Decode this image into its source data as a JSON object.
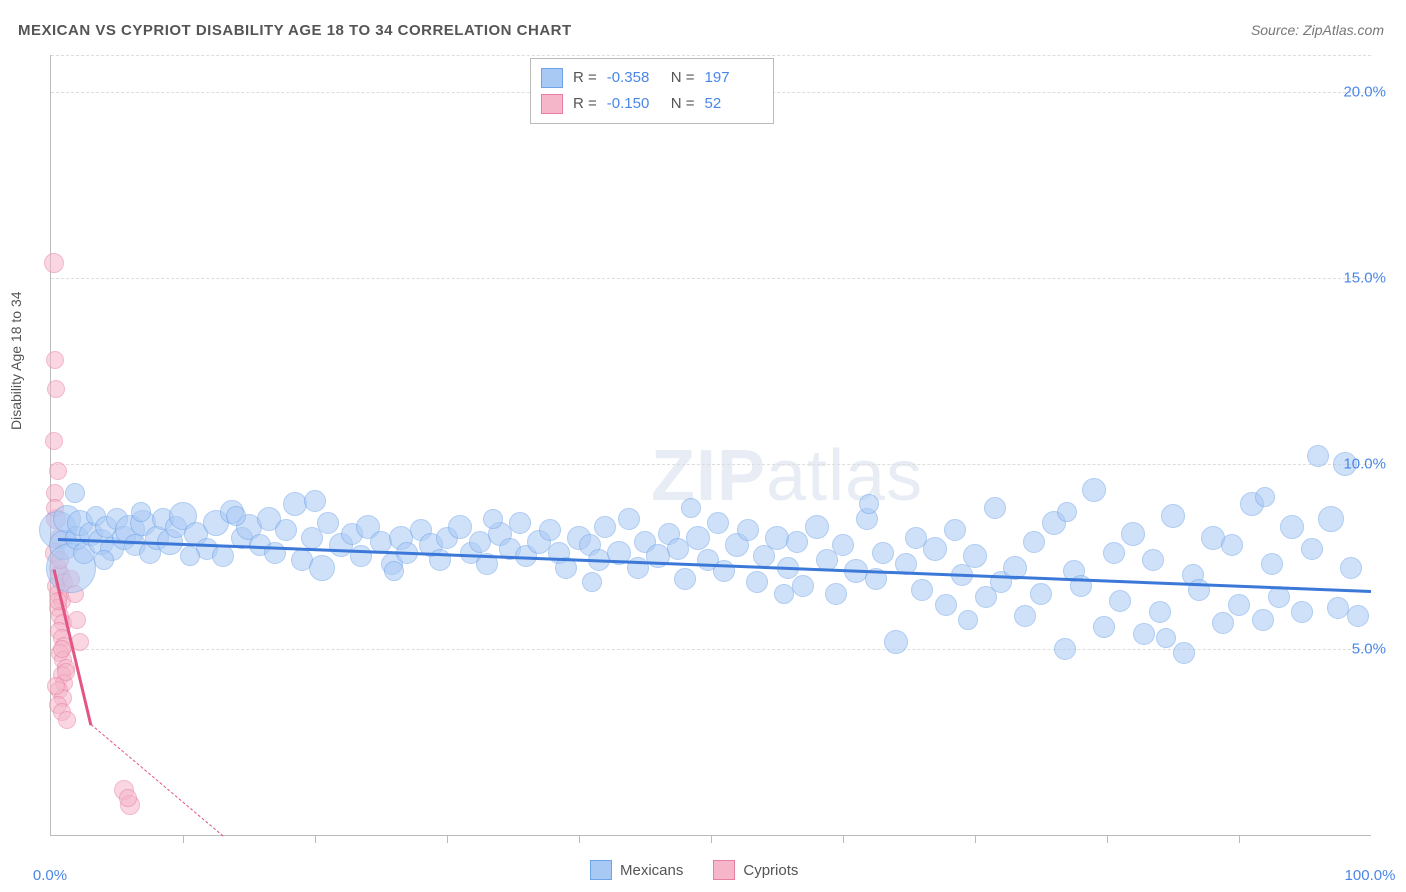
{
  "title": "MEXICAN VS CYPRIOT DISABILITY AGE 18 TO 34 CORRELATION CHART",
  "source": "Source: ZipAtlas.com",
  "y_axis_label": "Disability Age 18 to 34",
  "watermark": {
    "bold": "ZIP",
    "rest": "atlas"
  },
  "chart": {
    "type": "scatter",
    "xlim": [
      0,
      100
    ],
    "ylim": [
      0,
      21
    ],
    "y_ticks": [
      5.0,
      10.0,
      15.0,
      20.0
    ],
    "x_ticks": [
      0.0,
      100.0
    ],
    "x_minor_ticks": [
      10,
      20,
      30,
      40,
      50,
      60,
      70,
      80,
      90
    ],
    "y_tick_fmt": "%",
    "grid_color": "#dddddd",
    "border_color": "#bbbbbb",
    "background_color": "#ffffff",
    "text_color": "#555555",
    "value_color": "#4a86e8"
  },
  "series": {
    "mexicans": {
      "label": "Mexicans",
      "label_r": "R =",
      "r": "-0.358",
      "label_n": "N =",
      "n": "197",
      "fill": "#a9c9f5",
      "stroke": "#6fa3e8",
      "fill_opacity": 0.55,
      "trend": {
        "x1": 0.5,
        "y1": 8.0,
        "x2": 100,
        "y2": 6.6,
        "color": "#3b78d8",
        "width": 3
      },
      "points": [
        {
          "x": 0.5,
          "y": 8.2,
          "r": 18
        },
        {
          "x": 1,
          "y": 7.8,
          "r": 14
        },
        {
          "x": 1.2,
          "y": 8.5,
          "r": 13
        },
        {
          "x": 1.5,
          "y": 7.2,
          "r": 24
        },
        {
          "x": 2,
          "y": 8.0,
          "r": 11
        },
        {
          "x": 2.2,
          "y": 8.4,
          "r": 12
        },
        {
          "x": 2.5,
          "y": 7.6,
          "r": 10
        },
        {
          "x": 3,
          "y": 8.1,
          "r": 11
        },
        {
          "x": 3.4,
          "y": 8.6,
          "r": 9
        },
        {
          "x": 3.8,
          "y": 7.9,
          "r": 12
        },
        {
          "x": 4.2,
          "y": 8.3,
          "r": 10
        },
        {
          "x": 4.6,
          "y": 7.7,
          "r": 11
        },
        {
          "x": 5,
          "y": 8.5,
          "r": 10
        },
        {
          "x": 5.5,
          "y": 8.0,
          "r": 11
        },
        {
          "x": 6,
          "y": 8.2,
          "r": 14
        },
        {
          "x": 6.4,
          "y": 7.8,
          "r": 10
        },
        {
          "x": 7,
          "y": 8.4,
          "r": 12
        },
        {
          "x": 7.5,
          "y": 7.6,
          "r": 10
        },
        {
          "x": 8,
          "y": 8.0,
          "r": 11
        },
        {
          "x": 8.5,
          "y": 8.5,
          "r": 10
        },
        {
          "x": 9,
          "y": 7.9,
          "r": 12
        },
        {
          "x": 9.5,
          "y": 8.3,
          "r": 10
        },
        {
          "x": 10,
          "y": 8.6,
          "r": 13
        },
        {
          "x": 11,
          "y": 8.1,
          "r": 11
        },
        {
          "x": 11.8,
          "y": 7.7,
          "r": 10
        },
        {
          "x": 12.5,
          "y": 8.4,
          "r": 12
        },
        {
          "x": 13,
          "y": 7.5,
          "r": 10
        },
        {
          "x": 13.7,
          "y": 8.7,
          "r": 11
        },
        {
          "x": 14.5,
          "y": 8.0,
          "r": 10
        },
        {
          "x": 15,
          "y": 8.3,
          "r": 12
        },
        {
          "x": 15.8,
          "y": 7.8,
          "r": 10
        },
        {
          "x": 16.5,
          "y": 8.5,
          "r": 11
        },
        {
          "x": 17,
          "y": 7.6,
          "r": 10
        },
        {
          "x": 17.8,
          "y": 8.2,
          "r": 10
        },
        {
          "x": 18.5,
          "y": 8.9,
          "r": 11
        },
        {
          "x": 19,
          "y": 7.4,
          "r": 10
        },
        {
          "x": 19.8,
          "y": 8.0,
          "r": 10
        },
        {
          "x": 20.5,
          "y": 7.2,
          "r": 12
        },
        {
          "x": 21,
          "y": 8.4,
          "r": 10
        },
        {
          "x": 22,
          "y": 7.8,
          "r": 11
        },
        {
          "x": 22.8,
          "y": 8.1,
          "r": 10
        },
        {
          "x": 23.5,
          "y": 7.5,
          "r": 10
        },
        {
          "x": 24,
          "y": 8.3,
          "r": 11
        },
        {
          "x": 25,
          "y": 7.9,
          "r": 10
        },
        {
          "x": 25.8,
          "y": 7.3,
          "r": 10
        },
        {
          "x": 26.5,
          "y": 8.0,
          "r": 11
        },
        {
          "x": 27,
          "y": 7.6,
          "r": 10
        },
        {
          "x": 28,
          "y": 8.2,
          "r": 10
        },
        {
          "x": 28.8,
          "y": 7.8,
          "r": 11
        },
        {
          "x": 29.5,
          "y": 7.4,
          "r": 10
        },
        {
          "x": 30,
          "y": 8.0,
          "r": 10
        },
        {
          "x": 31,
          "y": 8.3,
          "r": 11
        },
        {
          "x": 31.8,
          "y": 7.6,
          "r": 10
        },
        {
          "x": 32.5,
          "y": 7.9,
          "r": 10
        },
        {
          "x": 33,
          "y": 7.3,
          "r": 10
        },
        {
          "x": 34,
          "y": 8.1,
          "r": 11
        },
        {
          "x": 34.8,
          "y": 7.7,
          "r": 10
        },
        {
          "x": 35.5,
          "y": 8.4,
          "r": 10
        },
        {
          "x": 36,
          "y": 7.5,
          "r": 10
        },
        {
          "x": 37,
          "y": 7.9,
          "r": 11
        },
        {
          "x": 37.8,
          "y": 8.2,
          "r": 10
        },
        {
          "x": 38.5,
          "y": 7.6,
          "r": 10
        },
        {
          "x": 39,
          "y": 7.2,
          "r": 10
        },
        {
          "x": 40,
          "y": 8.0,
          "r": 11
        },
        {
          "x": 40.8,
          "y": 7.8,
          "r": 10
        },
        {
          "x": 41.5,
          "y": 7.4,
          "r": 10
        },
        {
          "x": 42,
          "y": 8.3,
          "r": 10
        },
        {
          "x": 43,
          "y": 7.6,
          "r": 11
        },
        {
          "x": 43.8,
          "y": 8.5,
          "r": 10
        },
        {
          "x": 44.5,
          "y": 7.2,
          "r": 10
        },
        {
          "x": 45,
          "y": 7.9,
          "r": 10
        },
        {
          "x": 46,
          "y": 7.5,
          "r": 11
        },
        {
          "x": 46.8,
          "y": 8.1,
          "r": 10
        },
        {
          "x": 47.5,
          "y": 7.7,
          "r": 10
        },
        {
          "x": 48,
          "y": 6.9,
          "r": 10
        },
        {
          "x": 49,
          "y": 8.0,
          "r": 11
        },
        {
          "x": 49.8,
          "y": 7.4,
          "r": 10
        },
        {
          "x": 50.5,
          "y": 8.4,
          "r": 10
        },
        {
          "x": 51,
          "y": 7.1,
          "r": 10
        },
        {
          "x": 52,
          "y": 7.8,
          "r": 11
        },
        {
          "x": 52.8,
          "y": 8.2,
          "r": 10
        },
        {
          "x": 53.5,
          "y": 6.8,
          "r": 10
        },
        {
          "x": 54,
          "y": 7.5,
          "r": 10
        },
        {
          "x": 55,
          "y": 8.0,
          "r": 11
        },
        {
          "x": 55.8,
          "y": 7.2,
          "r": 10
        },
        {
          "x": 56.5,
          "y": 7.9,
          "r": 10
        },
        {
          "x": 57,
          "y": 6.7,
          "r": 10
        },
        {
          "x": 58,
          "y": 8.3,
          "r": 11
        },
        {
          "x": 58.8,
          "y": 7.4,
          "r": 10
        },
        {
          "x": 59.5,
          "y": 6.5,
          "r": 10
        },
        {
          "x": 60,
          "y": 7.8,
          "r": 10
        },
        {
          "x": 61,
          "y": 7.1,
          "r": 11
        },
        {
          "x": 61.8,
          "y": 8.5,
          "r": 10
        },
        {
          "x": 62.5,
          "y": 6.9,
          "r": 10
        },
        {
          "x": 63,
          "y": 7.6,
          "r": 10
        },
        {
          "x": 64,
          "y": 5.2,
          "r": 11
        },
        {
          "x": 64.8,
          "y": 7.3,
          "r": 10
        },
        {
          "x": 65.5,
          "y": 8.0,
          "r": 10
        },
        {
          "x": 66,
          "y": 6.6,
          "r": 10
        },
        {
          "x": 67,
          "y": 7.7,
          "r": 11
        },
        {
          "x": 67.8,
          "y": 6.2,
          "r": 10
        },
        {
          "x": 68.5,
          "y": 8.2,
          "r": 10
        },
        {
          "x": 69,
          "y": 7.0,
          "r": 10
        },
        {
          "x": 70,
          "y": 7.5,
          "r": 11
        },
        {
          "x": 70.8,
          "y": 6.4,
          "r": 10
        },
        {
          "x": 71.5,
          "y": 8.8,
          "r": 10
        },
        {
          "x": 72,
          "y": 6.8,
          "r": 10
        },
        {
          "x": 73,
          "y": 7.2,
          "r": 11
        },
        {
          "x": 73.8,
          "y": 5.9,
          "r": 10
        },
        {
          "x": 74.5,
          "y": 7.9,
          "r": 10
        },
        {
          "x": 75,
          "y": 6.5,
          "r": 10
        },
        {
          "x": 76,
          "y": 8.4,
          "r": 11
        },
        {
          "x": 76.8,
          "y": 5.0,
          "r": 10
        },
        {
          "x": 77.5,
          "y": 7.1,
          "r": 10
        },
        {
          "x": 78,
          "y": 6.7,
          "r": 10
        },
        {
          "x": 79,
          "y": 9.3,
          "r": 11
        },
        {
          "x": 79.8,
          "y": 5.6,
          "r": 10
        },
        {
          "x": 80.5,
          "y": 7.6,
          "r": 10
        },
        {
          "x": 81,
          "y": 6.3,
          "r": 10
        },
        {
          "x": 82,
          "y": 8.1,
          "r": 11
        },
        {
          "x": 82.8,
          "y": 5.4,
          "r": 10
        },
        {
          "x": 83.5,
          "y": 7.4,
          "r": 10
        },
        {
          "x": 84,
          "y": 6.0,
          "r": 10
        },
        {
          "x": 85,
          "y": 8.6,
          "r": 11
        },
        {
          "x": 85.8,
          "y": 4.9,
          "r": 10
        },
        {
          "x": 86.5,
          "y": 7.0,
          "r": 10
        },
        {
          "x": 87,
          "y": 6.6,
          "r": 10
        },
        {
          "x": 88,
          "y": 8.0,
          "r": 11
        },
        {
          "x": 88.8,
          "y": 5.7,
          "r": 10
        },
        {
          "x": 89.5,
          "y": 7.8,
          "r": 10
        },
        {
          "x": 90,
          "y": 6.2,
          "r": 10
        },
        {
          "x": 91,
          "y": 8.9,
          "r": 11
        },
        {
          "x": 91.8,
          "y": 5.8,
          "r": 10
        },
        {
          "x": 92.5,
          "y": 7.3,
          "r": 10
        },
        {
          "x": 93,
          "y": 6.4,
          "r": 10
        },
        {
          "x": 94,
          "y": 8.3,
          "r": 11
        },
        {
          "x": 94.8,
          "y": 6.0,
          "r": 10
        },
        {
          "x": 95.5,
          "y": 7.7,
          "r": 10
        },
        {
          "x": 96,
          "y": 10.2,
          "r": 10
        },
        {
          "x": 97,
          "y": 8.5,
          "r": 12
        },
        {
          "x": 97.5,
          "y": 6.1,
          "r": 10
        },
        {
          "x": 98,
          "y": 10.0,
          "r": 11
        },
        {
          "x": 98.5,
          "y": 7.2,
          "r": 10
        },
        {
          "x": 99,
          "y": 5.9,
          "r": 10
        },
        {
          "x": 1.8,
          "y": 9.2,
          "r": 9
        },
        {
          "x": 4.0,
          "y": 7.4,
          "r": 9
        },
        {
          "x": 6.8,
          "y": 8.7,
          "r": 9
        },
        {
          "x": 10.5,
          "y": 7.5,
          "r": 9
        },
        {
          "x": 14,
          "y": 8.6,
          "r": 9
        },
        {
          "x": 20,
          "y": 9.0,
          "r": 10
        },
        {
          "x": 26,
          "y": 7.1,
          "r": 9
        },
        {
          "x": 33.5,
          "y": 8.5,
          "r": 9
        },
        {
          "x": 41,
          "y": 6.8,
          "r": 9
        },
        {
          "x": 48.5,
          "y": 8.8,
          "r": 9
        },
        {
          "x": 55.5,
          "y": 6.5,
          "r": 9
        },
        {
          "x": 62,
          "y": 8.9,
          "r": 9
        },
        {
          "x": 69.5,
          "y": 5.8,
          "r": 9
        },
        {
          "x": 77,
          "y": 8.7,
          "r": 9
        },
        {
          "x": 84.5,
          "y": 5.3,
          "r": 9
        },
        {
          "x": 92,
          "y": 9.1,
          "r": 9
        }
      ]
    },
    "cypriots": {
      "label": "Cypriots",
      "label_r": "R =",
      "r": "-0.150",
      "label_n": "N =",
      "n": "52",
      "fill": "#f5b6c9",
      "stroke": "#e87fa3",
      "fill_opacity": 0.55,
      "trend": {
        "x1": 0.2,
        "y1": 7.2,
        "x2": 3.0,
        "y2": 3.0,
        "color": "#e35683",
        "width": 3
      },
      "trend_ext": {
        "x1": 3.0,
        "y1": 3.0,
        "x2": 13,
        "y2": 0,
        "color": "#e35683",
        "width": 1,
        "dashed": true
      },
      "points": [
        {
          "x": 0.2,
          "y": 15.4,
          "r": 9
        },
        {
          "x": 0.3,
          "y": 12.8,
          "r": 8
        },
        {
          "x": 0.4,
          "y": 12.0,
          "r": 8
        },
        {
          "x": 0.2,
          "y": 10.6,
          "r": 8
        },
        {
          "x": 0.5,
          "y": 9.8,
          "r": 8
        },
        {
          "x": 0.3,
          "y": 9.2,
          "r": 8
        },
        {
          "x": 0.4,
          "y": 8.5,
          "r": 9
        },
        {
          "x": 0.6,
          "y": 8.0,
          "r": 8
        },
        {
          "x": 0.3,
          "y": 7.6,
          "r": 9
        },
        {
          "x": 0.5,
          "y": 7.2,
          "r": 8
        },
        {
          "x": 0.7,
          "y": 7.0,
          "r": 9
        },
        {
          "x": 0.4,
          "y": 6.7,
          "r": 8
        },
        {
          "x": 0.6,
          "y": 6.5,
          "r": 9
        },
        {
          "x": 0.8,
          "y": 6.3,
          "r": 8
        },
        {
          "x": 0.5,
          "y": 6.1,
          "r": 8
        },
        {
          "x": 0.7,
          "y": 5.9,
          "r": 8
        },
        {
          "x": 0.9,
          "y": 5.7,
          "r": 8
        },
        {
          "x": 0.6,
          "y": 5.5,
          "r": 8
        },
        {
          "x": 0.8,
          "y": 5.3,
          "r": 8
        },
        {
          "x": 1.0,
          "y": 5.1,
          "r": 8
        },
        {
          "x": 0.7,
          "y": 4.9,
          "r": 8
        },
        {
          "x": 0.9,
          "y": 4.7,
          "r": 8
        },
        {
          "x": 1.1,
          "y": 4.5,
          "r": 8
        },
        {
          "x": 0.8,
          "y": 4.3,
          "r": 8
        },
        {
          "x": 1.0,
          "y": 4.1,
          "r": 8
        },
        {
          "x": 0.6,
          "y": 3.9,
          "r": 8
        },
        {
          "x": 0.9,
          "y": 3.7,
          "r": 8
        },
        {
          "x": 0.5,
          "y": 3.5,
          "r": 8
        },
        {
          "x": 0.8,
          "y": 3.3,
          "r": 8
        },
        {
          "x": 1.2,
          "y": 3.1,
          "r": 8
        },
        {
          "x": 0.4,
          "y": 4.0,
          "r": 8
        },
        {
          "x": 0.7,
          "y": 7.4,
          "r": 8
        },
        {
          "x": 1.0,
          "y": 6.8,
          "r": 8
        },
        {
          "x": 0.5,
          "y": 6.3,
          "r": 8
        },
        {
          "x": 0.8,
          "y": 5.0,
          "r": 8
        },
        {
          "x": 1.1,
          "y": 4.4,
          "r": 8
        },
        {
          "x": 0.3,
          "y": 8.8,
          "r": 8
        },
        {
          "x": 5.5,
          "y": 1.2,
          "r": 9
        },
        {
          "x": 6.0,
          "y": 0.8,
          "r": 9
        },
        {
          "x": 5.8,
          "y": 1.0,
          "r": 8
        },
        {
          "x": 1.5,
          "y": 6.9,
          "r": 8
        },
        {
          "x": 1.8,
          "y": 6.5,
          "r": 8
        },
        {
          "x": 2.0,
          "y": 5.8,
          "r": 8
        },
        {
          "x": 2.2,
          "y": 5.2,
          "r": 8
        }
      ]
    }
  }
}
